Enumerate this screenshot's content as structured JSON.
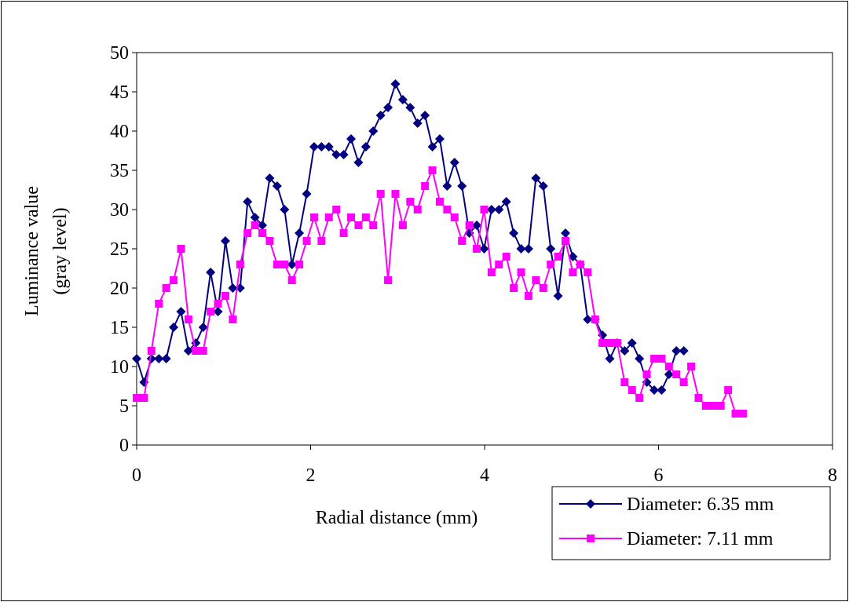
{
  "chart_data": {
    "type": "line",
    "title": "",
    "xlabel": "Radial distance (mm)",
    "ylabel_lines": [
      "Luminance value",
      "(gray level)"
    ],
    "xlim": [
      0,
      8
    ],
    "ylim": [
      0,
      50
    ],
    "xticks": [
      "0",
      "2",
      "4",
      "6",
      "8"
    ],
    "yticks": [
      "0",
      "5",
      "10",
      "15",
      "20",
      "25",
      "30",
      "35",
      "40",
      "45",
      "50"
    ],
    "grid": false,
    "legend_position": "bottom-right",
    "series": [
      {
        "name": "Diameter: 6.35 mm",
        "color": "#000080",
        "marker": "diamond",
        "x": [
          0.0,
          0.085,
          0.17,
          0.255,
          0.34,
          0.425,
          0.51,
          0.595,
          0.68,
          0.765,
          0.85,
          0.935,
          1.02,
          1.105,
          1.19,
          1.275,
          1.36,
          1.445,
          1.53,
          1.615,
          1.7,
          1.785,
          1.87,
          1.955,
          2.04,
          2.125,
          2.21,
          2.295,
          2.38,
          2.465,
          2.55,
          2.635,
          2.72,
          2.805,
          2.89,
          2.975,
          3.06,
          3.145,
          3.23,
          3.315,
          3.4,
          3.485,
          3.57,
          3.655,
          3.74,
          3.825,
          3.91,
          3.995,
          4.08,
          4.165,
          4.25,
          4.335,
          4.42,
          4.505,
          4.59,
          4.675,
          4.76,
          4.845,
          4.93,
          5.015,
          5.1,
          5.185,
          5.27,
          5.355,
          5.44,
          5.525,
          5.61,
          5.695,
          5.78,
          5.865,
          5.95,
          6.035,
          6.12,
          6.205,
          6.29
        ],
        "y": [
          11,
          8,
          11,
          11,
          11,
          15,
          17,
          12,
          13,
          15,
          22,
          17,
          26,
          20,
          20,
          31,
          29,
          28,
          34,
          33,
          30,
          23,
          27,
          32,
          38,
          38,
          38,
          37,
          37,
          39,
          36,
          38,
          40,
          42,
          43,
          46,
          44,
          43,
          41,
          42,
          38,
          39,
          33,
          36,
          33,
          27,
          28,
          25,
          30,
          30,
          31,
          27,
          25,
          25,
          34,
          33,
          25,
          19,
          27,
          24,
          23,
          16,
          16,
          14,
          11,
          13,
          12,
          13,
          11,
          8,
          7,
          7,
          9,
          12,
          12
        ]
      },
      {
        "name": "Diameter: 7.11 mm",
        "color": "#FF00FF",
        "marker": "square",
        "x": [
          0.0,
          0.085,
          0.17,
          0.255,
          0.34,
          0.425,
          0.51,
          0.595,
          0.68,
          0.765,
          0.85,
          0.935,
          1.02,
          1.105,
          1.19,
          1.275,
          1.36,
          1.445,
          1.53,
          1.615,
          1.7,
          1.785,
          1.87,
          1.955,
          2.04,
          2.125,
          2.21,
          2.295,
          2.38,
          2.465,
          2.55,
          2.635,
          2.72,
          2.805,
          2.89,
          2.975,
          3.06,
          3.145,
          3.23,
          3.315,
          3.4,
          3.485,
          3.57,
          3.655,
          3.74,
          3.825,
          3.91,
          3.995,
          4.08,
          4.165,
          4.25,
          4.335,
          4.42,
          4.505,
          4.59,
          4.675,
          4.76,
          4.845,
          4.93,
          5.015,
          5.1,
          5.185,
          5.27,
          5.355,
          5.44,
          5.525,
          5.61,
          5.695,
          5.78,
          5.865,
          5.95,
          6.035,
          6.12,
          6.205,
          6.29,
          6.375,
          6.46,
          6.545,
          6.63,
          6.715,
          6.8,
          6.885,
          6.97
        ],
        "y": [
          6,
          6,
          12,
          18,
          20,
          21,
          25,
          16,
          12,
          12,
          17,
          18,
          19,
          16,
          23,
          27,
          28,
          27,
          26,
          23,
          23,
          21,
          23,
          26,
          29,
          26,
          29,
          30,
          27,
          29,
          28,
          29,
          28,
          32,
          21,
          32,
          28,
          31,
          30,
          33,
          35,
          31,
          30,
          29,
          26,
          28,
          25,
          30,
          22,
          23,
          24,
          20,
          22,
          19,
          21,
          20,
          23,
          24,
          26,
          22,
          23,
          22,
          16,
          13,
          13,
          13,
          8,
          7,
          6,
          9,
          11,
          11,
          10,
          9,
          8,
          10,
          6,
          5,
          5,
          5,
          7,
          4,
          4
        ]
      }
    ]
  }
}
